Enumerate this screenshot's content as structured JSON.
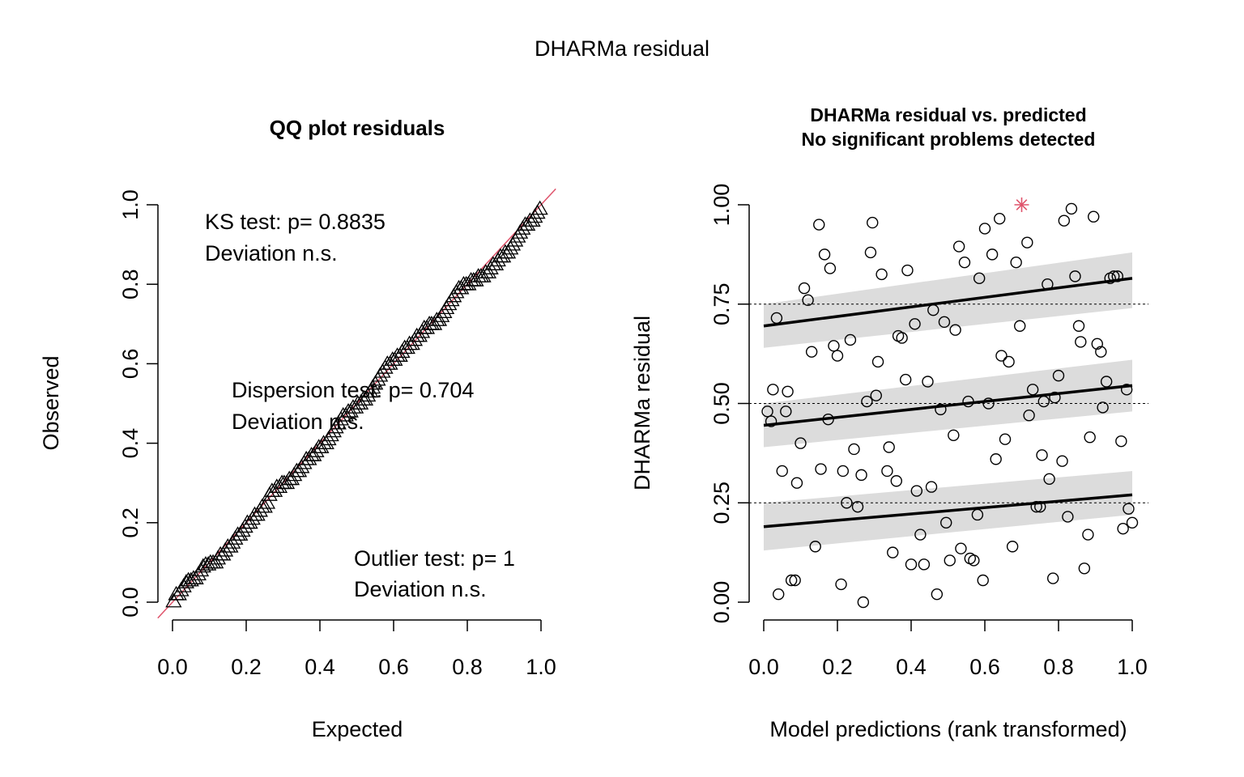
{
  "page_title": "DHARMa residual",
  "chart_data": [
    {
      "type": "scatter",
      "title": "QQ plot residuals",
      "xlabel": "Expected",
      "ylabel": "Observed",
      "xlim": [
        -0.04,
        1.04
      ],
      "ylim": [
        -0.04,
        1.04
      ],
      "x_ticks": [
        "0.0",
        "0.2",
        "0.4",
        "0.6",
        "0.8",
        "1.0"
      ],
      "y_ticks": [
        "0.0",
        "0.2",
        "0.4",
        "0.6",
        "0.8",
        "1.0"
      ],
      "marker": "triangle",
      "reference_line": {
        "intercept": 0,
        "slope": 1,
        "color": "#df536b"
      },
      "annotations": [
        {
          "line1": "KS test: p= 0.8835",
          "line2": "Deviation  n.s."
        },
        {
          "line1": "Dispersion test: p= 0.704",
          "line2": "Deviation  n.s."
        },
        {
          "line1": "Outlier test: p= 1",
          "line2": "Deviation  n.s."
        }
      ],
      "n_points": 150,
      "x": [
        0.003,
        0.01,
        0.017,
        0.023,
        0.03,
        0.037,
        0.043,
        0.05,
        0.057,
        0.063,
        0.07,
        0.077,
        0.083,
        0.09,
        0.097,
        0.103,
        0.11,
        0.117,
        0.123,
        0.13,
        0.137,
        0.143,
        0.15,
        0.157,
        0.163,
        0.17,
        0.177,
        0.183,
        0.19,
        0.197,
        0.203,
        0.21,
        0.217,
        0.223,
        0.23,
        0.237,
        0.243,
        0.25,
        0.257,
        0.263,
        0.27,
        0.277,
        0.283,
        0.29,
        0.297,
        0.303,
        0.31,
        0.317,
        0.323,
        0.33,
        0.337,
        0.343,
        0.35,
        0.357,
        0.363,
        0.37,
        0.377,
        0.383,
        0.39,
        0.397,
        0.403,
        0.41,
        0.417,
        0.423,
        0.43,
        0.437,
        0.443,
        0.45,
        0.457,
        0.463,
        0.47,
        0.477,
        0.483,
        0.49,
        0.497,
        0.503,
        0.51,
        0.517,
        0.523,
        0.53,
        0.537,
        0.543,
        0.55,
        0.557,
        0.563,
        0.57,
        0.577,
        0.583,
        0.59,
        0.597,
        0.603,
        0.61,
        0.617,
        0.623,
        0.63,
        0.637,
        0.643,
        0.65,
        0.657,
        0.663,
        0.67,
        0.677,
        0.683,
        0.69,
        0.697,
        0.703,
        0.71,
        0.717,
        0.723,
        0.73,
        0.737,
        0.743,
        0.75,
        0.757,
        0.763,
        0.77,
        0.777,
        0.783,
        0.79,
        0.797,
        0.803,
        0.81,
        0.817,
        0.823,
        0.83,
        0.837,
        0.843,
        0.85,
        0.857,
        0.863,
        0.87,
        0.877,
        0.883,
        0.89,
        0.897,
        0.903,
        0.91,
        0.917,
        0.923,
        0.93,
        0.937,
        0.943,
        0.95,
        0.957,
        0.963,
        0.97,
        0.977,
        0.983,
        0.99,
        0.997
      ],
      "y": [
        0.002,
        0.02,
        0.02,
        0.03,
        0.04,
        0.05,
        0.055,
        0.055,
        0.06,
        0.06,
        0.07,
        0.08,
        0.09,
        0.095,
        0.095,
        0.1,
        0.1,
        0.1,
        0.11,
        0.12,
        0.12,
        0.13,
        0.14,
        0.14,
        0.15,
        0.16,
        0.17,
        0.17,
        0.18,
        0.19,
        0.2,
        0.2,
        0.21,
        0.22,
        0.22,
        0.23,
        0.24,
        0.24,
        0.25,
        0.27,
        0.28,
        0.28,
        0.29,
        0.29,
        0.3,
        0.3,
        0.3,
        0.31,
        0.31,
        0.32,
        0.33,
        0.33,
        0.34,
        0.35,
        0.36,
        0.36,
        0.37,
        0.37,
        0.38,
        0.39,
        0.39,
        0.4,
        0.4,
        0.41,
        0.42,
        0.43,
        0.44,
        0.45,
        0.46,
        0.47,
        0.47,
        0.48,
        0.48,
        0.49,
        0.49,
        0.5,
        0.5,
        0.51,
        0.51,
        0.52,
        0.53,
        0.54,
        0.55,
        0.56,
        0.57,
        0.58,
        0.59,
        0.6,
        0.6,
        0.61,
        0.61,
        0.62,
        0.62,
        0.63,
        0.64,
        0.64,
        0.65,
        0.65,
        0.66,
        0.67,
        0.67,
        0.68,
        0.69,
        0.69,
        0.7,
        0.7,
        0.7,
        0.71,
        0.71,
        0.72,
        0.73,
        0.74,
        0.75,
        0.76,
        0.77,
        0.78,
        0.79,
        0.79,
        0.8,
        0.8,
        0.8,
        0.81,
        0.81,
        0.81,
        0.82,
        0.82,
        0.82,
        0.83,
        0.83,
        0.84,
        0.85,
        0.85,
        0.86,
        0.87,
        0.87,
        0.88,
        0.88,
        0.89,
        0.9,
        0.91,
        0.92,
        0.93,
        0.94,
        0.95,
        0.95,
        0.96,
        0.96,
        0.97,
        0.98,
        0.99
      ]
    },
    {
      "type": "scatter",
      "title": "DHARMa residual vs. predicted",
      "subtitle": "No significant problems detected",
      "xlabel": "Model predictions (rank transformed)",
      "ylabel": "DHARMa residual",
      "xlim": [
        -0.04,
        1.04
      ],
      "ylim": [
        -0.04,
        1.04
      ],
      "x_ticks": [
        "0.0",
        "0.2",
        "0.4",
        "0.6",
        "0.8",
        "1.0"
      ],
      "y_ticks": [
        "0.00",
        "0.25",
        "0.50",
        "0.75",
        "1.00"
      ],
      "marker": "circle",
      "reference_lines_y": [
        0.25,
        0.5,
        0.75
      ],
      "quantile_fits": [
        {
          "q": 0.25,
          "start": [
            0,
            0.19
          ],
          "end": [
            1,
            0.27
          ],
          "band_lower": [
            0.13,
            0.22
          ],
          "band_upper": [
            0.25,
            0.33
          ]
        },
        {
          "q": 0.5,
          "start": [
            0,
            0.445
          ],
          "end": [
            1,
            0.545
          ],
          "band_lower": [
            0.39,
            0.48
          ],
          "band_upper": [
            0.5,
            0.61
          ]
        },
        {
          "q": 0.75,
          "start": [
            0,
            0.695
          ],
          "end": [
            1,
            0.815
          ],
          "band_lower": [
            0.64,
            0.74
          ],
          "band_upper": [
            0.75,
            0.88
          ]
        }
      ],
      "outliers": [
        {
          "x": 0.7,
          "y": 1.0,
          "color": "#df536b"
        }
      ],
      "points": [
        [
          0.01,
          0.48
        ],
        [
          0.02,
          0.455
        ],
        [
          0.025,
          0.535
        ],
        [
          0.035,
          0.715
        ],
        [
          0.04,
          0.02
        ],
        [
          0.05,
          0.33
        ],
        [
          0.06,
          0.48
        ],
        [
          0.065,
          0.53
        ],
        [
          0.075,
          0.055
        ],
        [
          0.085,
          0.055
        ],
        [
          0.09,
          0.3
        ],
        [
          0.1,
          0.4
        ],
        [
          0.11,
          0.79
        ],
        [
          0.12,
          0.76
        ],
        [
          0.13,
          0.63
        ],
        [
          0.14,
          0.14
        ],
        [
          0.15,
          0.95
        ],
        [
          0.155,
          0.335
        ],
        [
          0.165,
          0.875
        ],
        [
          0.175,
          0.46
        ],
        [
          0.18,
          0.84
        ],
        [
          0.19,
          0.645
        ],
        [
          0.2,
          0.62
        ],
        [
          0.21,
          0.045
        ],
        [
          0.215,
          0.33
        ],
        [
          0.225,
          0.25
        ],
        [
          0.235,
          0.66
        ],
        [
          0.245,
          0.385
        ],
        [
          0.255,
          0.24
        ],
        [
          0.265,
          0.32
        ],
        [
          0.27,
          0.0
        ],
        [
          0.28,
          0.505
        ],
        [
          0.29,
          0.88
        ],
        [
          0.295,
          0.955
        ],
        [
          0.305,
          0.52
        ],
        [
          0.31,
          0.605
        ],
        [
          0.32,
          0.825
        ],
        [
          0.335,
          0.33
        ],
        [
          0.34,
          0.39
        ],
        [
          0.35,
          0.125
        ],
        [
          0.36,
          0.305
        ],
        [
          0.365,
          0.67
        ],
        [
          0.375,
          0.665
        ],
        [
          0.385,
          0.56
        ],
        [
          0.39,
          0.835
        ],
        [
          0.4,
          0.095
        ],
        [
          0.41,
          0.7
        ],
        [
          0.415,
          0.28
        ],
        [
          0.425,
          0.17
        ],
        [
          0.435,
          0.095
        ],
        [
          0.445,
          0.555
        ],
        [
          0.455,
          0.29
        ],
        [
          0.46,
          0.735
        ],
        [
          0.47,
          0.02
        ],
        [
          0.48,
          0.485
        ],
        [
          0.49,
          0.705
        ],
        [
          0.495,
          0.2
        ],
        [
          0.505,
          0.105
        ],
        [
          0.515,
          0.42
        ],
        [
          0.52,
          0.685
        ],
        [
          0.53,
          0.895
        ],
        [
          0.535,
          0.135
        ],
        [
          0.545,
          0.855
        ],
        [
          0.555,
          0.505
        ],
        [
          0.56,
          0.11
        ],
        [
          0.57,
          0.105
        ],
        [
          0.58,
          0.22
        ],
        [
          0.585,
          0.815
        ],
        [
          0.595,
          0.055
        ],
        [
          0.6,
          0.94
        ],
        [
          0.61,
          0.5
        ],
        [
          0.62,
          0.875
        ],
        [
          0.63,
          0.36
        ],
        [
          0.64,
          0.965
        ],
        [
          0.645,
          0.62
        ],
        [
          0.655,
          0.41
        ],
        [
          0.665,
          0.605
        ],
        [
          0.675,
          0.14
        ],
        [
          0.685,
          0.855
        ],
        [
          0.695,
          0.695
        ],
        [
          0.715,
          0.905
        ],
        [
          0.72,
          0.47
        ],
        [
          0.73,
          0.535
        ],
        [
          0.74,
          0.24
        ],
        [
          0.75,
          0.24
        ],
        [
          0.755,
          0.37
        ],
        [
          0.76,
          0.505
        ],
        [
          0.77,
          0.8
        ],
        [
          0.775,
          0.31
        ],
        [
          0.785,
          0.06
        ],
        [
          0.79,
          0.515
        ],
        [
          0.8,
          0.57
        ],
        [
          0.81,
          0.355
        ],
        [
          0.815,
          0.96
        ],
        [
          0.825,
          0.215
        ],
        [
          0.835,
          0.99
        ],
        [
          0.845,
          0.82
        ],
        [
          0.855,
          0.695
        ],
        [
          0.86,
          0.655
        ],
        [
          0.87,
          0.085
        ],
        [
          0.88,
          0.17
        ],
        [
          0.885,
          0.415
        ],
        [
          0.895,
          0.97
        ],
        [
          0.905,
          0.65
        ],
        [
          0.915,
          0.63
        ],
        [
          0.92,
          0.49
        ],
        [
          0.93,
          0.555
        ],
        [
          0.94,
          0.815
        ],
        [
          0.95,
          0.82
        ],
        [
          0.96,
          0.82
        ],
        [
          0.97,
          0.405
        ],
        [
          0.975,
          0.185
        ],
        [
          0.985,
          0.535
        ],
        [
          0.99,
          0.235
        ],
        [
          1.0,
          0.2
        ]
      ]
    }
  ]
}
